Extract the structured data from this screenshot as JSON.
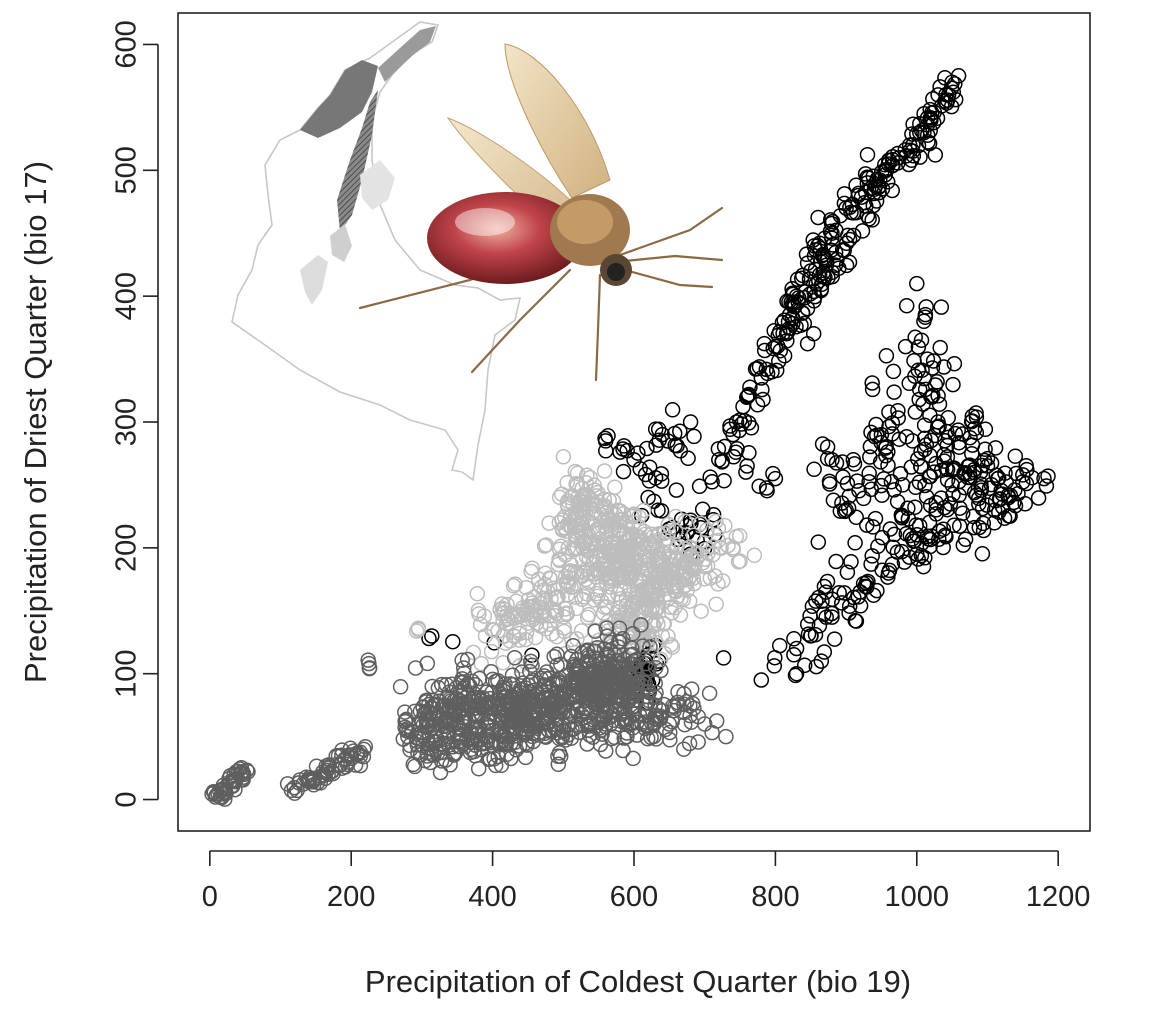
{
  "chart_data": {
    "type": "scatter",
    "title": "",
    "xlabel": "Precipitation of Coldest Quarter (bio 19)",
    "ylabel": "Precipitation of Driest Quarter (bio 17)",
    "xlim": [
      -45,
      1245
    ],
    "ylim": [
      -25,
      625
    ],
    "xticks": [
      "0",
      "200",
      "400",
      "600",
      "800",
      "1000",
      "1200"
    ],
    "yticks": [
      "0",
      "100",
      "200",
      "300",
      "400",
      "500",
      "600"
    ],
    "grid": false,
    "legend": "none",
    "marker": "open-circle",
    "series": [
      {
        "color": "#000000",
        "clusters": [
          {
            "points": [
              [
                860,
                440
              ],
              [
                900,
                470
              ],
              [
                930,
                490
              ],
              [
                960,
                505
              ],
              [
                990,
                520
              ],
              [
                1020,
                540
              ],
              [
                1040,
                555
              ],
              [
                1050,
                570
              ],
              [
                1045,
                560
              ],
              [
                1010,
                530
              ],
              [
                975,
                510
              ],
              [
                940,
                485
              ],
              [
                880,
                450
              ],
              [
                850,
                420
              ],
              [
                830,
                400
              ],
              [
                820,
                385
              ],
              [
                800,
                360
              ],
              [
                780,
                335
              ],
              [
                760,
                320
              ],
              [
                745,
                300
              ],
              [
                740,
                290
              ],
              [
                870,
                415
              ],
              [
                905,
                445
              ]
            ],
            "spread": [
              8,
              8
            ],
            "n": 220
          },
          {
            "points": [
              [
                1000,
                410
              ],
              [
                1010,
                380
              ],
              [
                1015,
                350
              ],
              [
                1020,
                320
              ],
              [
                1030,
                300
              ],
              [
                1060,
                280
              ],
              [
                1100,
                265
              ],
              [
                1150,
                258
              ],
              [
                1180,
                255
              ],
              [
                1130,
                240
              ],
              [
                1080,
                225
              ],
              [
                1040,
                210
              ],
              [
                1000,
                195
              ],
              [
                960,
                180
              ],
              [
                920,
                165
              ],
              [
                880,
                145
              ],
              [
                850,
                130
              ],
              [
                830,
                120
              ],
              [
                900,
                230
              ],
              [
                880,
                270
              ],
              [
                950,
                290
              ],
              [
                980,
                250
              ],
              [
                1050,
                250
              ],
              [
                1110,
                230
              ]
            ],
            "spread": [
              14,
              12
            ],
            "n": 320
          },
          {
            "points": [
              [
                560,
                285
              ],
              [
                600,
                270
              ],
              [
                640,
                290
              ],
              [
                680,
                300
              ],
              [
                720,
                270
              ],
              [
                760,
                265
              ],
              [
                800,
                255
              ],
              [
                620,
                240
              ],
              [
                650,
                215
              ],
              [
                680,
                195
              ],
              [
                700,
                205
              ]
            ],
            "spread": [
              10,
              8
            ],
            "n": 70
          },
          {
            "points": [
              [
                605,
                105
              ],
              [
                615,
                95
              ],
              [
                600,
                90
              ],
              [
                620,
                115
              ]
            ],
            "spread": [
              8,
              6
            ],
            "n": 45
          },
          {
            "points": [
              [
                310,
                128
              ],
              [
                780,
                95
              ],
              [
                830,
                100
              ],
              [
                865,
                110
              ]
            ],
            "spread": [
              3,
              3
            ],
            "n": 10
          }
        ]
      },
      {
        "color": "#bdbdbd",
        "clusters": [
          {
            "points": [
              [
                520,
                250
              ],
              [
                540,
                235
              ],
              [
                560,
                220
              ],
              [
                580,
                210
              ],
              [
                600,
                200
              ],
              [
                620,
                190
              ],
              [
                640,
                185
              ],
              [
                670,
                180
              ],
              [
                700,
                185
              ],
              [
                740,
                200
              ],
              [
                620,
                160
              ],
              [
                590,
                140
              ],
              [
                570,
                110
              ],
              [
                600,
                120
              ],
              [
                640,
                130
              ],
              [
                520,
                200
              ],
              [
                500,
                170
              ],
              [
                460,
                150
              ],
              [
                420,
                140
              ],
              [
                390,
                130
              ],
              [
                510,
                225
              ],
              [
                560,
                180
              ],
              [
                660,
                200
              ]
            ],
            "spread": [
              14,
              12
            ],
            "n": 720
          },
          {
            "points": [
              [
                295,
                135
              ]
            ],
            "spread": [
              2,
              2
            ],
            "n": 2
          }
        ]
      },
      {
        "color": "#5f5f5f",
        "clusters": [
          {
            "points": [
              [
                290,
                70
              ],
              [
                320,
                75
              ],
              [
                350,
                80
              ],
              [
                380,
                75
              ],
              [
                410,
                70
              ],
              [
                440,
                75
              ],
              [
                470,
                85
              ],
              [
                500,
                80
              ],
              [
                520,
                90
              ],
              [
                540,
                100
              ],
              [
                560,
                95
              ],
              [
                580,
                90
              ],
              [
                600,
                85
              ],
              [
                630,
                75
              ],
              [
                650,
                60
              ],
              [
                700,
                60
              ],
              [
                560,
                60
              ],
              [
                500,
                55
              ],
              [
                420,
                45
              ],
              [
                370,
                40
              ],
              [
                320,
                40
              ],
              [
                280,
                50
              ],
              [
                340,
                60
              ],
              [
                460,
                65
              ],
              [
                600,
                110
              ],
              [
                580,
                125
              ]
            ],
            "spread": [
              16,
              11
            ],
            "n": 900
          },
          {
            "points": [
              [
                120,
                5
              ],
              [
                140,
                15
              ],
              [
                160,
                22
              ],
              [
                180,
                28
              ],
              [
                200,
                35
              ],
              [
                220,
                42
              ]
            ],
            "spread": [
              7,
              4
            ],
            "n": 60
          },
          {
            "points": [
              [
                8,
                2
              ],
              [
                20,
                8
              ],
              [
                35,
                15
              ],
              [
                48,
                20
              ]
            ],
            "spread": [
              5,
              3
            ],
            "n": 40
          },
          {
            "points": [
              [
                225,
                108
              ],
              [
                730,
                50
              ]
            ],
            "spread": [
              3,
              2
            ],
            "n": 5
          }
        ]
      }
    ]
  },
  "illustrations": {
    "map_inset": "colombia-map-illustration",
    "insect_inset": "sand-fly-illustration"
  }
}
